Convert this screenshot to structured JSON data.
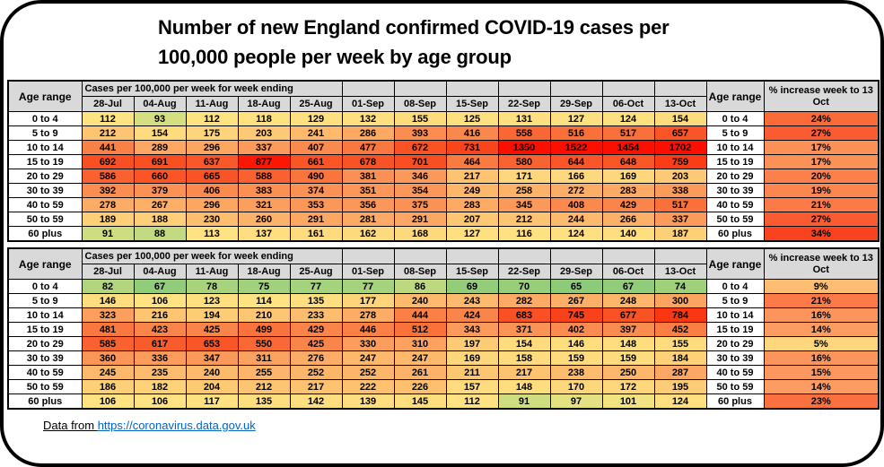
{
  "page": {
    "title_line1": "Number of new England confirmed COVID-19 cases per",
    "title_line2": "100,000 people per week by age group",
    "footer_prefix": "Data from ",
    "footer_link": "https://coronavirus.data.gov.uk"
  },
  "header_labels": {
    "age_range": "Age range",
    "cases_span": "Cases per 100,000 per week for week ending",
    "pct_increase": "% increase week to 13 Oct"
  },
  "colors": {
    "header_bg": "#D9D9D9",
    "border": "#000000",
    "link_blue": "#0563C1",
    "case_ramp_stops": [
      [
        65,
        "#8CCB78"
      ],
      [
        78,
        "#A7D37D"
      ],
      [
        88,
        "#C3DA80"
      ],
      [
        95,
        "#DCE081"
      ],
      [
        105,
        "#FFE382"
      ],
      [
        160,
        "#FEDB7E"
      ],
      [
        210,
        "#FDC672"
      ],
      [
        290,
        "#FCA763"
      ],
      [
        370,
        "#FB9356"
      ],
      [
        460,
        "#FA7C42"
      ],
      [
        570,
        "#F96432"
      ],
      [
        700,
        "#F94E22"
      ],
      [
        800,
        "#FA3210"
      ],
      [
        900,
        "#FB0F00"
      ]
    ],
    "pct_ramp_stops": [
      [
        5,
        "#FDD67E"
      ],
      [
        9,
        "#FDBE74"
      ],
      [
        14,
        "#FC9C62"
      ],
      [
        17,
        "#FC9158"
      ],
      [
        21,
        "#FB7A48"
      ],
      [
        24,
        "#FB6B3A"
      ],
      [
        27,
        "#FA5B31"
      ],
      [
        34,
        "#F94320"
      ]
    ]
  },
  "chart_data": [
    {
      "type": "table",
      "title": "Upper table: new England confirmed COVID-19 cases per 100,000 per week by age group",
      "columns": [
        "28-Jul",
        "04-Aug",
        "11-Aug",
        "18-Aug",
        "25-Aug",
        "01-Sep",
        "08-Sep",
        "15-Sep",
        "22-Sep",
        "29-Sep",
        "06-Oct",
        "13-Oct"
      ],
      "pct_column": "% increase week to 13 Oct",
      "rows": [
        {
          "age_range": "0 to 4",
          "values": [
            112,
            93,
            112,
            118,
            129,
            132,
            155,
            125,
            131,
            127,
            124,
            154
          ],
          "pct_increase": "24%"
        },
        {
          "age_range": "5 to 9",
          "values": [
            212,
            154,
            175,
            203,
            241,
            286,
            393,
            416,
            558,
            516,
            517,
            657
          ],
          "pct_increase": "27%"
        },
        {
          "age_range": "10 to 14",
          "values": [
            441,
            289,
            296,
            337,
            407,
            477,
            672,
            731,
            1350,
            1522,
            1454,
            1702
          ],
          "pct_increase": "17%"
        },
        {
          "age_range": "15 to 19",
          "values": [
            692,
            691,
            637,
            877,
            661,
            678,
            701,
            464,
            580,
            644,
            648,
            759
          ],
          "pct_increase": "17%"
        },
        {
          "age_range": "20 to 29",
          "values": [
            586,
            660,
            665,
            588,
            490,
            381,
            346,
            217,
            171,
            166,
            169,
            203
          ],
          "pct_increase": "20%"
        },
        {
          "age_range": "30 to 39",
          "values": [
            392,
            379,
            406,
            383,
            374,
            351,
            354,
            249,
            258,
            272,
            283,
            338
          ],
          "pct_increase": "19%"
        },
        {
          "age_range": "40 to 59",
          "values": [
            278,
            267,
            296,
            321,
            353,
            356,
            375,
            283,
            345,
            408,
            429,
            517
          ],
          "pct_increase": "21%"
        },
        {
          "age_range": "50 to 59",
          "values": [
            189,
            188,
            230,
            260,
            291,
            281,
            291,
            207,
            212,
            244,
            266,
            337
          ],
          "pct_increase": "27%"
        },
        {
          "age_range": "60 plus",
          "values": [
            91,
            88,
            113,
            137,
            161,
            162,
            168,
            127,
            116,
            124,
            140,
            187
          ],
          "pct_increase": "34%"
        }
      ]
    },
    {
      "type": "table",
      "title": "Lower table: new England confirmed COVID-19 cases per 100,000 per week by age group",
      "columns": [
        "28-Jul",
        "04-Aug",
        "11-Aug",
        "18-Aug",
        "25-Aug",
        "01-Sep",
        "08-Sep",
        "15-Sep",
        "22-Sep",
        "29-Sep",
        "06-Oct",
        "13-Oct"
      ],
      "pct_column": "% increase week to 13 Oct",
      "rows": [
        {
          "age_range": "0 to 4",
          "values": [
            82,
            67,
            78,
            75,
            77,
            77,
            86,
            69,
            70,
            65,
            67,
            74
          ],
          "pct_increase": "9%"
        },
        {
          "age_range": "5 to 9",
          "values": [
            146,
            106,
            123,
            114,
            135,
            177,
            240,
            243,
            282,
            267,
            248,
            300
          ],
          "pct_increase": "21%"
        },
        {
          "age_range": "10 to 14",
          "values": [
            323,
            216,
            194,
            210,
            233,
            278,
            444,
            424,
            683,
            745,
            677,
            784
          ],
          "pct_increase": "16%"
        },
        {
          "age_range": "15 to 19",
          "values": [
            481,
            423,
            425,
            499,
            429,
            446,
            512,
            343,
            371,
            402,
            397,
            452
          ],
          "pct_increase": "14%"
        },
        {
          "age_range": "20 to 29",
          "values": [
            585,
            617,
            653,
            550,
            425,
            330,
            310,
            197,
            154,
            146,
            148,
            155
          ],
          "pct_increase": "5%"
        },
        {
          "age_range": "30 to 39",
          "values": [
            360,
            336,
            347,
            311,
            276,
            247,
            247,
            169,
            158,
            159,
            159,
            184
          ],
          "pct_increase": "16%"
        },
        {
          "age_range": "40 to 59",
          "values": [
            245,
            235,
            240,
            255,
            252,
            252,
            261,
            211,
            217,
            238,
            250,
            287
          ],
          "pct_increase": "15%"
        },
        {
          "age_range": "50 to 59",
          "values": [
            186,
            182,
            204,
            212,
            217,
            222,
            226,
            157,
            148,
            170,
            172,
            195
          ],
          "pct_increase": "14%"
        },
        {
          "age_range": "60 plus",
          "values": [
            106,
            106,
            117,
            135,
            142,
            139,
            145,
            112,
            91,
            97,
            101,
            124
          ],
          "pct_increase": "23%"
        }
      ]
    }
  ]
}
